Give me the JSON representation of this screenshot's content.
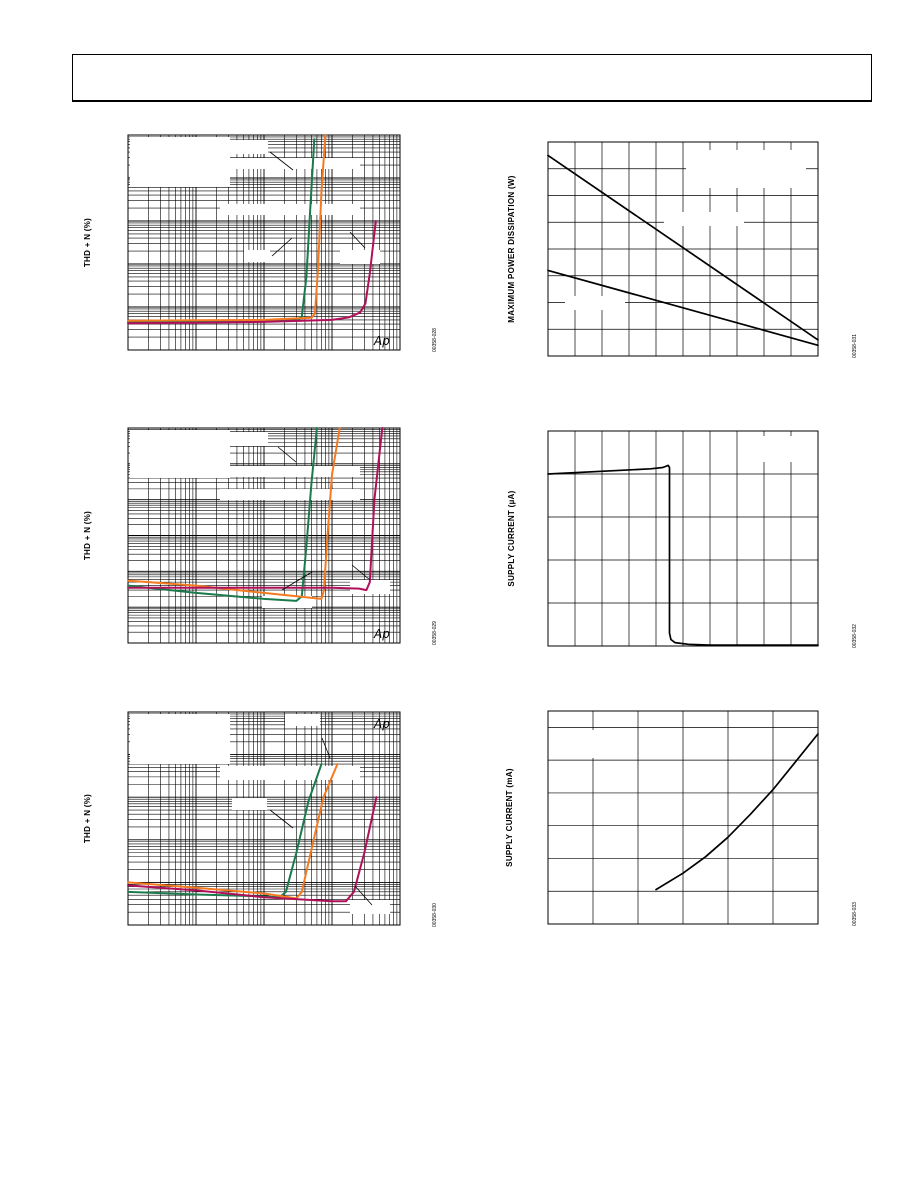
{
  "page": {
    "header_text": ""
  },
  "colors": {
    "green": "#1a7a4c",
    "orange": "#f47a20",
    "crimson": "#b0105a",
    "black": "#000000"
  },
  "chart_data": [
    {
      "id": "thd-1",
      "type": "line",
      "log_x": true,
      "log_y": true,
      "ylabel": "THD + N (%)",
      "fig_id": "00358-028",
      "logo": "Ap",
      "xlim": [
        0.001,
        10
      ],
      "ylim": [
        0.001,
        100
      ],
      "series": [
        {
          "color": "green",
          "x": [
            0.001,
            0.01,
            0.1,
            0.3,
            0.36,
            0.42,
            0.48,
            0.55
          ],
          "y": [
            0.0045,
            0.0046,
            0.0047,
            0.0048,
            0.006,
            0.05,
            2,
            80
          ]
        },
        {
          "color": "orange",
          "x": [
            0.001,
            0.01,
            0.1,
            0.5,
            0.56,
            0.62,
            0.7,
            0.8
          ],
          "y": [
            0.0048,
            0.0049,
            0.005,
            0.0056,
            0.007,
            0.07,
            5,
            100
          ]
        },
        {
          "color": "crimson",
          "x": [
            0.001,
            0.01,
            0.1,
            1,
            1.8,
            2.6,
            3.1,
            3.6,
            4.4
          ],
          "y": [
            0.0042,
            0.0043,
            0.0045,
            0.005,
            0.0058,
            0.0075,
            0.012,
            0.06,
            1
          ]
        }
      ]
    },
    {
      "id": "thd-2",
      "type": "line",
      "log_x": true,
      "log_y": true,
      "ylabel": "THD + N (%)",
      "fig_id": "00358-029",
      "logo": "Ap",
      "xlim": [
        0.001,
        10
      ],
      "ylim": [
        0.0001,
        100
      ],
      "series": [
        {
          "color": "green",
          "x": [
            0.001,
            0.01,
            0.1,
            0.3,
            0.36,
            0.42,
            0.5,
            0.6
          ],
          "y": [
            0.004,
            0.0025,
            0.0017,
            0.0015,
            0.002,
            0.05,
            3,
            100
          ]
        },
        {
          "color": "orange",
          "x": [
            0.001,
            0.01,
            0.1,
            0.7,
            0.76,
            0.86,
            1,
            1.3
          ],
          "y": [
            0.0055,
            0.004,
            0.0025,
            0.0017,
            0.003,
            0.1,
            5,
            100
          ]
        },
        {
          "color": "crimson",
          "x": [
            0.001,
            0.01,
            0.1,
            1,
            2.5,
            3.2,
            3.6,
            4.2,
            5.5
          ],
          "y": [
            0.0035,
            0.0035,
            0.0035,
            0.0035,
            0.0033,
            0.003,
            0.005,
            1,
            100
          ]
        }
      ]
    },
    {
      "id": "thd-3",
      "type": "line",
      "log_x": true,
      "log_y": true,
      "ylabel": "THD + N (%)",
      "fig_id": "00358-030",
      "logo": "Ap",
      "xlim": [
        0.001,
        10
      ],
      "ylim": [
        0.001,
        100
      ],
      "series": [
        {
          "color": "green",
          "x": [
            0.001,
            0.01,
            0.1,
            0.17,
            0.21,
            0.3,
            0.45,
            0.7
          ],
          "y": [
            0.006,
            0.0052,
            0.0047,
            0.0045,
            0.006,
            0.05,
            0.8,
            6
          ]
        },
        {
          "color": "orange",
          "x": [
            0.001,
            0.01,
            0.1,
            0.3,
            0.36,
            0.5,
            0.75,
            1.2
          ],
          "y": [
            0.01,
            0.0075,
            0.0055,
            0.0042,
            0.006,
            0.06,
            1,
            6
          ]
        },
        {
          "color": "crimson",
          "x": [
            0.001,
            0.01,
            0.1,
            1,
            1.6,
            2.1,
            3,
            4.5
          ],
          "y": [
            0.0085,
            0.0065,
            0.0045,
            0.0036,
            0.0036,
            0.006,
            0.05,
            1
          ]
        }
      ]
    },
    {
      "id": "power-dissipation",
      "type": "line",
      "ylabel": "MAXIMUM POWER DISSIPATION (W)",
      "fig_id": "00358-031",
      "xlim": [
        0,
        10
      ],
      "ylim": [
        0,
        8
      ],
      "series": [
        {
          "color": "black",
          "x": [
            0,
            10
          ],
          "y": [
            7.5,
            0.6
          ]
        },
        {
          "color": "black",
          "x": [
            0,
            10
          ],
          "y": [
            3.2,
            0.4
          ]
        }
      ]
    },
    {
      "id": "supply-current-1",
      "type": "line",
      "ylabel": "SUPPLY CURRENT (µA)",
      "fig_id": "00358-032",
      "xlim": [
        0,
        10
      ],
      "ylim": [
        0,
        5
      ],
      "series": [
        {
          "color": "black",
          "x": [
            0,
            3.8,
            4.25,
            4.45,
            4.5,
            4.5,
            4.55,
            4.7,
            5.2,
            6,
            10
          ],
          "y": [
            4,
            4.12,
            4.15,
            4.2,
            4.15,
            0.3,
            0.15,
            0.08,
            0.04,
            0.02,
            0.02
          ]
        }
      ]
    },
    {
      "id": "supply-current-2",
      "type": "line",
      "ylabel": "SUPPLY CURRENT (mA)",
      "fig_id": "00358-033",
      "xlim": [
        0,
        6
      ],
      "ylim": [
        0,
        6.5
      ],
      "series": [
        {
          "color": "black",
          "x": [
            2.4,
            3,
            3.5,
            4,
            4.5,
            5,
            5.5,
            6
          ],
          "y": [
            1.05,
            1.55,
            2.05,
            2.65,
            3.35,
            4.1,
            4.95,
            5.8
          ]
        }
      ]
    }
  ]
}
